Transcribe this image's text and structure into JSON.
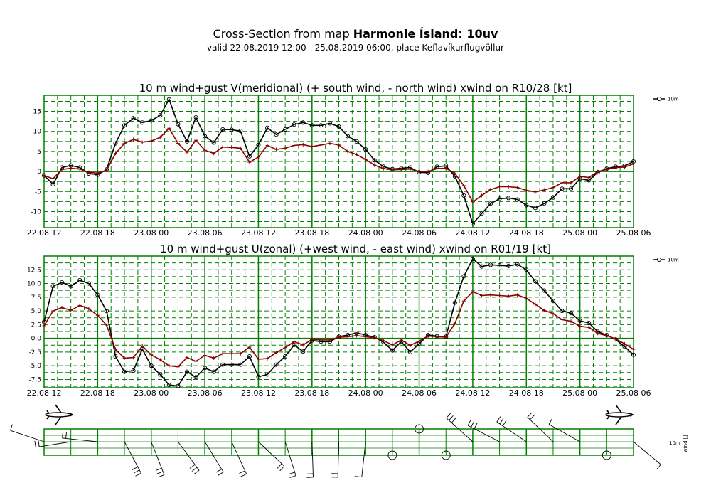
{
  "header": {
    "title_prefix": "Cross-Section from map ",
    "title_bold": "Harmonie Ísland: 10uv",
    "subtitle": "valid 22.08.2019 12:00 - 25.08.2019 06:00, place Keflavíkurflugvöllur"
  },
  "wind_panel_label": "10m",
  "wind_panel_label2": "wind []",
  "colors": {
    "grid": "#008000",
    "primary": "#000000",
    "gust": "#8b0000"
  },
  "chart_data": [
    {
      "type": "line",
      "title": "10 m wind+gust V(meridional) (+ south wind, - north wind) xwind on R10/28 [kt]",
      "x_tick_labels": [
        "22.08 12",
        "22.08 18",
        "23.08 00",
        "23.08 06",
        "23.08 12",
        "23.08 18",
        "24.08 00",
        "24.08 06",
        "24.08 12",
        "24.08 18",
        "25.08 00",
        "25.08 06"
      ],
      "x_range_hours": [
        0,
        66
      ],
      "ylim": [
        -14,
        19
      ],
      "y_ticks": [
        -10,
        -5,
        0,
        5,
        10,
        15
      ],
      "y_tick_labels": [
        "-10",
        "-5",
        "0",
        "5",
        "10",
        "15"
      ],
      "legend": [
        "10m"
      ],
      "series": [
        {
          "name": "10m",
          "x": [
            0,
            1,
            2,
            3,
            4,
            5,
            6,
            7,
            8,
            9,
            10,
            11,
            12,
            13,
            14,
            15,
            16,
            17,
            18,
            19,
            20,
            21,
            22,
            23,
            24,
            25,
            26,
            27,
            28,
            29,
            30,
            31,
            32,
            33,
            34,
            35,
            36,
            37,
            38,
            39,
            40,
            41,
            42,
            43,
            44,
            45,
            46,
            47,
            48,
            49,
            50,
            51,
            52,
            53,
            54,
            55,
            56,
            57,
            58,
            59,
            60,
            61,
            62,
            63,
            64,
            65,
            66
          ],
          "values": [
            -1,
            -3.2,
            1,
            1.5,
            1,
            -0.5,
            -0.8,
            0.5,
            7,
            11.5,
            13.3,
            12.2,
            12.7,
            14,
            18,
            11.8,
            7.5,
            13.5,
            8.8,
            7.2,
            10.5,
            10.4,
            10.1,
            3.8,
            6.6,
            10.9,
            9.2,
            10.5,
            11.7,
            12.2,
            11.5,
            11.5,
            12,
            11.2,
            8.8,
            7.5,
            5.5,
            2.8,
            1.2,
            0.6,
            0.8,
            1,
            -0.2,
            -0.3,
            1.2,
            1.4,
            -1.2,
            -6,
            -13,
            -10.5,
            -8,
            -6.8,
            -6.6,
            -7,
            -8.4,
            -9.1,
            -8,
            -6.5,
            -4.3,
            -4.3,
            -1.8,
            -2.2,
            -0.2,
            0.7,
            1.2,
            1.4,
            2.5
          ]
        },
        {
          "name": "",
          "x": [
            0,
            1,
            2,
            3,
            4,
            5,
            6,
            7,
            8,
            9,
            10,
            11,
            12,
            13,
            14,
            15,
            16,
            17,
            18,
            19,
            20,
            21,
            22,
            23,
            24,
            25,
            26,
            27,
            28,
            29,
            30,
            31,
            32,
            33,
            34,
            35,
            36,
            37,
            38,
            39,
            40,
            41,
            42,
            43,
            44,
            45,
            46,
            47,
            48,
            49,
            50,
            51,
            52,
            53,
            54,
            55,
            56,
            57,
            58,
            59,
            60,
            61,
            62,
            63,
            64,
            65,
            66
          ],
          "values": [
            -1,
            -1.8,
            0.5,
            0.8,
            0.6,
            -0.2,
            -0.4,
            0.3,
            4.5,
            7,
            8,
            7.3,
            7.6,
            8.5,
            10.8,
            7,
            4.8,
            7.8,
            5.3,
            4.5,
            6.1,
            6,
            5.8,
            2.3,
            3.6,
            6.5,
            5.5,
            5.8,
            6.5,
            6.7,
            6.2,
            6.6,
            7,
            6.6,
            5,
            4.2,
            3,
            1.6,
            0.7,
            0.4,
            0.5,
            0.6,
            0,
            0,
            0.7,
            0.8,
            -0.5,
            -3.5,
            -7.6,
            -6,
            -4.5,
            -3.8,
            -3.8,
            -4,
            -4.7,
            -5.1,
            -4.6,
            -4,
            -2.8,
            -2.8,
            -1.2,
            -1.5,
            0,
            0.5,
            1,
            1.1,
            1.9
          ]
        }
      ]
    },
    {
      "type": "line",
      "title": "10 m wind+gust U(zonal) (+west wind, - east wind) xwind on R01/19 [kt]",
      "x_tick_labels": [
        "22.08 12",
        "22.08 18",
        "23.08 00",
        "23.08 06",
        "23.08 12",
        "23.08 18",
        "24.08 00",
        "24.08 06",
        "24.08 12",
        "24.08 18",
        "25.08 00",
        "25.08 06"
      ],
      "x_range_hours": [
        0,
        66
      ],
      "ylim": [
        -9,
        15
      ],
      "y_ticks": [
        -7.5,
        -5,
        -2.5,
        0,
        2.5,
        5,
        7.5,
        10,
        12.5
      ],
      "y_tick_labels": [
        "-7.5",
        "-5.0",
        "-2.5",
        "0.0",
        "2.5",
        "5.0",
        "7.5",
        "10.0",
        "12.5"
      ],
      "legend": [
        "10m"
      ],
      "series": [
        {
          "name": "10m",
          "x": [
            0,
            1,
            2,
            3,
            4,
            5,
            6,
            7,
            8,
            9,
            10,
            11,
            12,
            13,
            14,
            15,
            16,
            17,
            18,
            19,
            20,
            21,
            22,
            23,
            24,
            25,
            26,
            27,
            28,
            29,
            30,
            31,
            32,
            33,
            34,
            35,
            36,
            37,
            38,
            39,
            40,
            41,
            42,
            43,
            44,
            45,
            46,
            47,
            48,
            49,
            50,
            51,
            52,
            53,
            54,
            55,
            56,
            57,
            58,
            59,
            60,
            61,
            62,
            63,
            64,
            65,
            66
          ],
          "values": [
            3,
            9.5,
            10.2,
            9.5,
            10.6,
            10,
            7.9,
            5,
            -3.3,
            -6.1,
            -5.9,
            -2,
            -5,
            -6.6,
            -8.5,
            -8.7,
            -6.1,
            -7.1,
            -5.4,
            -6.1,
            -4.8,
            -4.8,
            -4.8,
            -3.3,
            -7,
            -6.6,
            -4.8,
            -3.3,
            -1.2,
            -2.4,
            -0.4,
            -0.6,
            -0.6,
            0.3,
            0.6,
            1,
            0.6,
            0.2,
            -0.7,
            -2.2,
            -0.6,
            -2.5,
            -1,
            0.6,
            0.4,
            0.3,
            6.5,
            11.3,
            14.5,
            13.1,
            13.4,
            13.3,
            13.2,
            13.5,
            12.5,
            10.4,
            8.7,
            6.8,
            5,
            4.6,
            3.2,
            2.8,
            1.2,
            0.6,
            -0.2,
            -1.5,
            -3
          ]
        },
        {
          "name": "",
          "x": [
            0,
            1,
            2,
            3,
            4,
            5,
            6,
            7,
            8,
            9,
            10,
            11,
            12,
            13,
            14,
            15,
            16,
            17,
            18,
            19,
            20,
            21,
            22,
            23,
            24,
            25,
            26,
            27,
            28,
            29,
            30,
            31,
            32,
            33,
            34,
            35,
            36,
            37,
            38,
            39,
            40,
            41,
            42,
            43,
            44,
            45,
            46,
            47,
            48,
            49,
            50,
            51,
            52,
            53,
            54,
            55,
            56,
            57,
            58,
            59,
            60,
            61,
            62,
            63,
            64,
            65,
            66
          ],
          "values": [
            2.3,
            5,
            5.6,
            5.1,
            6,
            5.4,
            4.2,
            2.4,
            -2,
            -3.6,
            -3.5,
            -1.4,
            -3,
            -3.9,
            -5,
            -5.2,
            -3.5,
            -4.2,
            -3.1,
            -3.6,
            -2.8,
            -2.8,
            -2.8,
            -1.6,
            -3.8,
            -3.7,
            -2.6,
            -1.7,
            -0.6,
            -1.2,
            -0.2,
            -0.3,
            -0.3,
            0.2,
            0.3,
            0.5,
            0.3,
            0.1,
            -0.4,
            -1.2,
            -0.3,
            -1.3,
            -0.5,
            0.4,
            0.3,
            0.2,
            2.7,
            6.8,
            8.5,
            7.8,
            7.9,
            7.8,
            7.7,
            7.9,
            7.3,
            6.2,
            5.1,
            4.5,
            3.4,
            3.1,
            2.2,
            2,
            0.9,
            0.5,
            -0.1,
            -1,
            -2
          ]
        }
      ]
    }
  ]
}
